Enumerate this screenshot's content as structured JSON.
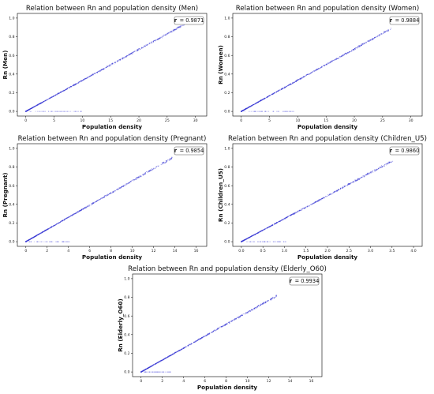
{
  "chart_data": [
    {
      "type": "scatter",
      "title": "Relation between Rn and population density (Men)",
      "xlabel": "Population density",
      "ylabel": "Rn (Men)",
      "xlim": [
        -1.5,
        32
      ],
      "ylim": [
        -0.05,
        1.05
      ],
      "xticks": [
        0,
        5,
        10,
        15,
        20,
        25,
        30
      ],
      "yticks": [
        0.0,
        0.2,
        0.4,
        0.6,
        0.8,
        1.0
      ],
      "r_label": "r",
      "r_value": "= 0.9871",
      "trend": {
        "x_end": 28,
        "y_end": 0.93
      },
      "flat_band": {
        "x_start": 0.5,
        "x_end": 10
      },
      "color": "#3b3bd6"
    },
    {
      "type": "scatter",
      "title": "Relation between Rn and population density (Women)",
      "xlabel": "Population density",
      "ylabel": "Rn (Women)",
      "xlim": [
        -1.5,
        32
      ],
      "ylim": [
        -0.05,
        1.05
      ],
      "xticks": [
        0,
        5,
        10,
        15,
        20,
        25,
        30
      ],
      "yticks": [
        0.0,
        0.2,
        0.4,
        0.6,
        0.8,
        1.0
      ],
      "r_label": "r",
      "r_value": "= 0.9884",
      "trend": {
        "x_end": 26,
        "y_end": 0.87
      },
      "flat_band": {
        "x_start": 0.5,
        "x_end": 9.5
      },
      "color": "#3b3bd6"
    },
    {
      "type": "scatter",
      "title": "Relation between Rn and population density (Pregnant)",
      "xlabel": "Population density",
      "ylabel": "Rn (Pregnant)",
      "xlim": [
        -0.8,
        17
      ],
      "ylim": [
        -0.05,
        1.05
      ],
      "xticks": [
        0,
        2,
        4,
        6,
        8,
        10,
        12,
        14,
        16
      ],
      "yticks": [
        0.0,
        0.2,
        0.4,
        0.6,
        0.8,
        1.0
      ],
      "r_label": "r",
      "r_value": "= 0.9854",
      "trend": {
        "x_end": 13.5,
        "y_end": 0.88
      },
      "flat_band": {
        "x_start": 0.3,
        "x_end": 4.2
      },
      "color": "#3b3bd6"
    },
    {
      "type": "scatter",
      "title": "Relation between Rn and population density (Children_U5)",
      "xlabel": "Population density",
      "ylabel": "Rn (Children_U5)",
      "xlim": [
        -0.2,
        4.2
      ],
      "ylim": [
        -0.05,
        1.05
      ],
      "xticks": [
        "0.0",
        "0.5",
        "1.0",
        "1.5",
        "2.0",
        "2.5",
        "3.0",
        "3.5",
        "4.0"
      ],
      "yticks": [
        0.0,
        0.2,
        0.4,
        0.6,
        0.8,
        1.0
      ],
      "r_label": "r",
      "r_value": "= 0.9860",
      "trend": {
        "x_end": 3.45,
        "y_end": 0.85
      },
      "flat_band": {
        "x_start": 0.1,
        "x_end": 1.05
      },
      "color": "#3b3bd6"
    },
    {
      "type": "scatter",
      "title": "Relation between Rn and population density (Elderly_O60)",
      "xlabel": "Population density",
      "ylabel": "Rn (Elderly_O60)",
      "xlim": [
        -0.8,
        17
      ],
      "ylim": [
        -0.05,
        1.05
      ],
      "xticks": [
        0,
        2,
        4,
        6,
        8,
        10,
        12,
        14,
        16
      ],
      "yticks": [
        0.0,
        0.2,
        0.4,
        0.6,
        0.8,
        1.0
      ],
      "r_label": "r",
      "r_value": "= 0.9934",
      "trend": {
        "x_end": 12.5,
        "y_end": 0.8
      },
      "flat_band": {
        "x_start": 0.3,
        "x_end": 2.8
      },
      "color": "#3b3bd6"
    }
  ]
}
